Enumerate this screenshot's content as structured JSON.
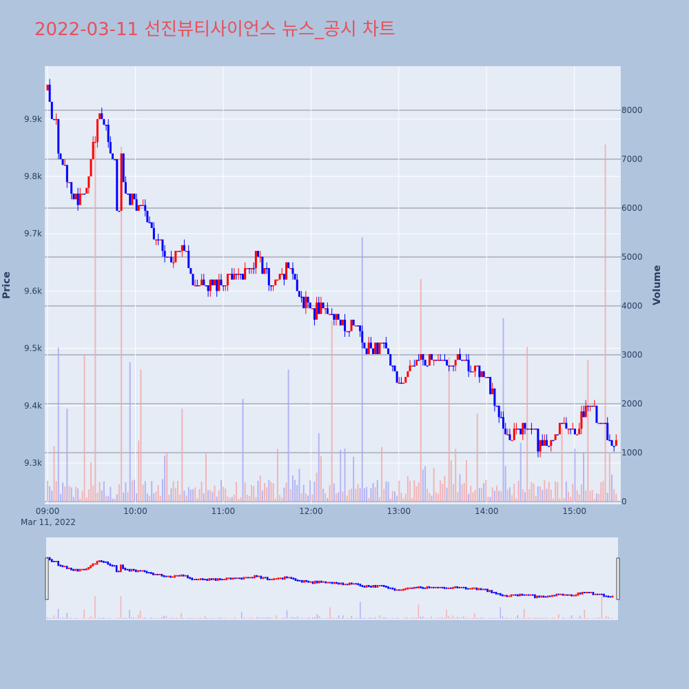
{
  "title": "2022-03-11 선진뷰티사이언스 뉴스_공시 차트",
  "colors": {
    "up": "#ff0000",
    "down": "#0000ff",
    "up_volume": "#f4a6a6",
    "down_volume": "#a6a6f4",
    "title": "#e8505b",
    "background": "#b0c4de",
    "plot_bg": "#e5ecf6"
  },
  "chart_data": {
    "type": "candlestick",
    "ylabel": "Price",
    "y2label": "Volume",
    "xlabel_date": "Mar 11, 2022",
    "x_ticks": [
      "09:00",
      "10:00",
      "11:00",
      "12:00",
      "13:00",
      "14:00",
      "15:00"
    ],
    "y_ticks": [
      "9.3k",
      "9.4k",
      "9.5k",
      "9.6k",
      "9.7k",
      "9.8k",
      "9.9k"
    ],
    "y2_ticks": [
      "0",
      "1000",
      "2000",
      "3000",
      "4000",
      "5000",
      "6000",
      "7000",
      "8000"
    ],
    "ylim": [
      9230,
      9990
    ],
    "y2lim": [
      0,
      8900
    ],
    "grid": true,
    "rangeslider": true,
    "price_path": [
      [
        0,
        9950
      ],
      [
        3,
        9880
      ],
      [
        6,
        9820
      ],
      [
        10,
        9780
      ],
      [
        14,
        9760
      ],
      [
        18,
        9790
      ],
      [
        22,
        9870
      ],
      [
        24,
        9910
      ],
      [
        27,
        9880
      ],
      [
        30,
        9820
      ],
      [
        31,
        9770
      ],
      [
        32,
        9740
      ],
      [
        34,
        9830
      ],
      [
        36,
        9780
      ],
      [
        38,
        9760
      ],
      [
        42,
        9750
      ],
      [
        45,
        9740
      ],
      [
        48,
        9710
      ],
      [
        50,
        9690
      ],
      [
        54,
        9670
      ],
      [
        58,
        9660
      ],
      [
        62,
        9670
      ],
      [
        66,
        9640
      ],
      [
        68,
        9600
      ],
      [
        72,
        9620
      ],
      [
        76,
        9610
      ],
      [
        80,
        9610
      ],
      [
        84,
        9620
      ],
      [
        88,
        9630
      ],
      [
        90,
        9620
      ],
      [
        94,
        9690
      ],
      [
        96,
        9660
      ],
      [
        99,
        9640
      ],
      [
        103,
        9620
      ],
      [
        106,
        9630
      ],
      [
        110,
        9640
      ],
      [
        114,
        9620
      ],
      [
        118,
        9580
      ],
      [
        122,
        9560
      ],
      [
        126,
        9570
      ],
      [
        130,
        9560
      ],
      [
        134,
        9550
      ],
      [
        138,
        9540
      ],
      [
        142,
        9540
      ],
      [
        146,
        9510
      ],
      [
        150,
        9490
      ],
      [
        154,
        9500
      ],
      [
        158,
        9480
      ],
      [
        161,
        9430
      ],
      [
        165,
        9450
      ],
      [
        168,
        9470
      ],
      [
        172,
        9490
      ],
      [
        176,
        9480
      ],
      [
        180,
        9470
      ],
      [
        184,
        9470
      ],
      [
        188,
        9480
      ],
      [
        192,
        9480
      ],
      [
        196,
        9470
      ],
      [
        200,
        9450
      ],
      [
        204,
        9430
      ],
      [
        208,
        9390
      ],
      [
        211,
        9360
      ],
      [
        213,
        9330
      ],
      [
        216,
        9370
      ],
      [
        220,
        9350
      ],
      [
        224,
        9320
      ],
      [
        228,
        9330
      ],
      [
        232,
        9350
      ],
      [
        236,
        9360
      ],
      [
        240,
        9350
      ],
      [
        244,
        9360
      ],
      [
        246,
        9380
      ],
      [
        249,
        9410
      ],
      [
        251,
        9400
      ],
      [
        253,
        9370
      ],
      [
        255,
        9350
      ],
      [
        257,
        9340
      ]
    ],
    "volume_spikes": [
      [
        5,
        3150
      ],
      [
        9,
        1900
      ],
      [
        17,
        3000
      ],
      [
        22,
        7300
      ],
      [
        34,
        7250
      ],
      [
        38,
        2850
      ],
      [
        43,
        2700
      ],
      [
        62,
        1900
      ],
      [
        90,
        2100
      ],
      [
        111,
        2700
      ],
      [
        125,
        1400
      ],
      [
        131,
        3700
      ],
      [
        145,
        5400
      ],
      [
        172,
        4550
      ],
      [
        185,
        2950
      ],
      [
        198,
        1800
      ],
      [
        210,
        3750
      ],
      [
        221,
        3160
      ],
      [
        237,
        1500
      ],
      [
        249,
        2900
      ],
      [
        257,
        7300
      ]
    ]
  }
}
